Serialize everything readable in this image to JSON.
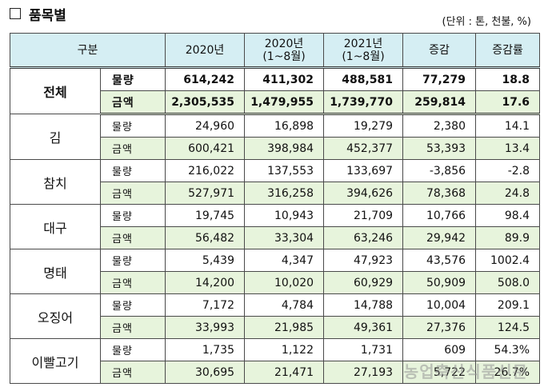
{
  "heading": "품목별",
  "unit": "(단위 : 톤, 천불, %)",
  "header": {
    "category": "구분",
    "col_2020": "2020년",
    "col_2020p_year": "2020년",
    "col_2020p_period": "(1~8월)",
    "col_2021p_year": "2021년",
    "col_2021p_period": "(1~8월)",
    "change": "증감",
    "rate": "증감률"
  },
  "total": {
    "name": "전체",
    "volume": {
      "label": "물량",
      "y2020": "614,242",
      "y2020p": "411,302",
      "y2021p": "488,581",
      "change": "77,279",
      "rate": "18.8"
    },
    "amount": {
      "label": "금액",
      "y2020": "2,305,535",
      "y2020p": "1,479,955",
      "y2021p": "1,739,770",
      "change": "259,814",
      "rate": "17.6"
    }
  },
  "items": [
    {
      "name": "김",
      "volume": {
        "label": "물량",
        "y2020": "24,960",
        "y2020p": "16,898",
        "y2021p": "19,279",
        "change": "2,380",
        "rate": "14.1"
      },
      "amount": {
        "label": "금액",
        "y2020": "600,421",
        "y2020p": "398,984",
        "y2021p": "452,377",
        "change": "53,393",
        "rate": "13.4"
      }
    },
    {
      "name": "참치",
      "volume": {
        "label": "물량",
        "y2020": "216,022",
        "y2020p": "137,553",
        "y2021p": "133,697",
        "change": "-3,856",
        "rate": "-2.8"
      },
      "amount": {
        "label": "금액",
        "y2020": "527,971",
        "y2020p": "316,258",
        "y2021p": "394,626",
        "change": "78,368",
        "rate": "24.8"
      }
    },
    {
      "name": "대구",
      "volume": {
        "label": "물량",
        "y2020": "19,745",
        "y2020p": "10,943",
        "y2021p": "21,709",
        "change": "10,766",
        "rate": "98.4"
      },
      "amount": {
        "label": "금액",
        "y2020": "56,482",
        "y2020p": "33,304",
        "y2021p": "63,246",
        "change": "29,942",
        "rate": "89.9"
      }
    },
    {
      "name": "명태",
      "volume": {
        "label": "물량",
        "y2020": "5,439",
        "y2020p": "4,347",
        "y2021p": "47,923",
        "change": "43,576",
        "rate": "1002.4"
      },
      "amount": {
        "label": "금액",
        "y2020": "14,200",
        "y2020p": "10,020",
        "y2021p": "60,929",
        "change": "50,909",
        "rate": "508.0"
      }
    },
    {
      "name": "오징어",
      "volume": {
        "label": "물량",
        "y2020": "7,172",
        "y2020p": "4,784",
        "y2021p": "14,788",
        "change": "10,004",
        "rate": "209.1"
      },
      "amount": {
        "label": "금액",
        "y2020": "33,993",
        "y2020p": "21,985",
        "y2021p": "49,361",
        "change": "27,376",
        "rate": "124.5"
      }
    },
    {
      "name": "이빨고기",
      "volume": {
        "label": "물량",
        "y2020": "1,735",
        "y2020p": "1,122",
        "y2021p": "1,731",
        "change": "609",
        "rate": "54.3%"
      },
      "amount": {
        "label": "금액",
        "y2020": "30,695",
        "y2020p": "21,471",
        "y2021p": "27,193",
        "change": "5,722",
        "rate": "26.7%"
      }
    }
  ],
  "watermark": "농업축산식품신문"
}
